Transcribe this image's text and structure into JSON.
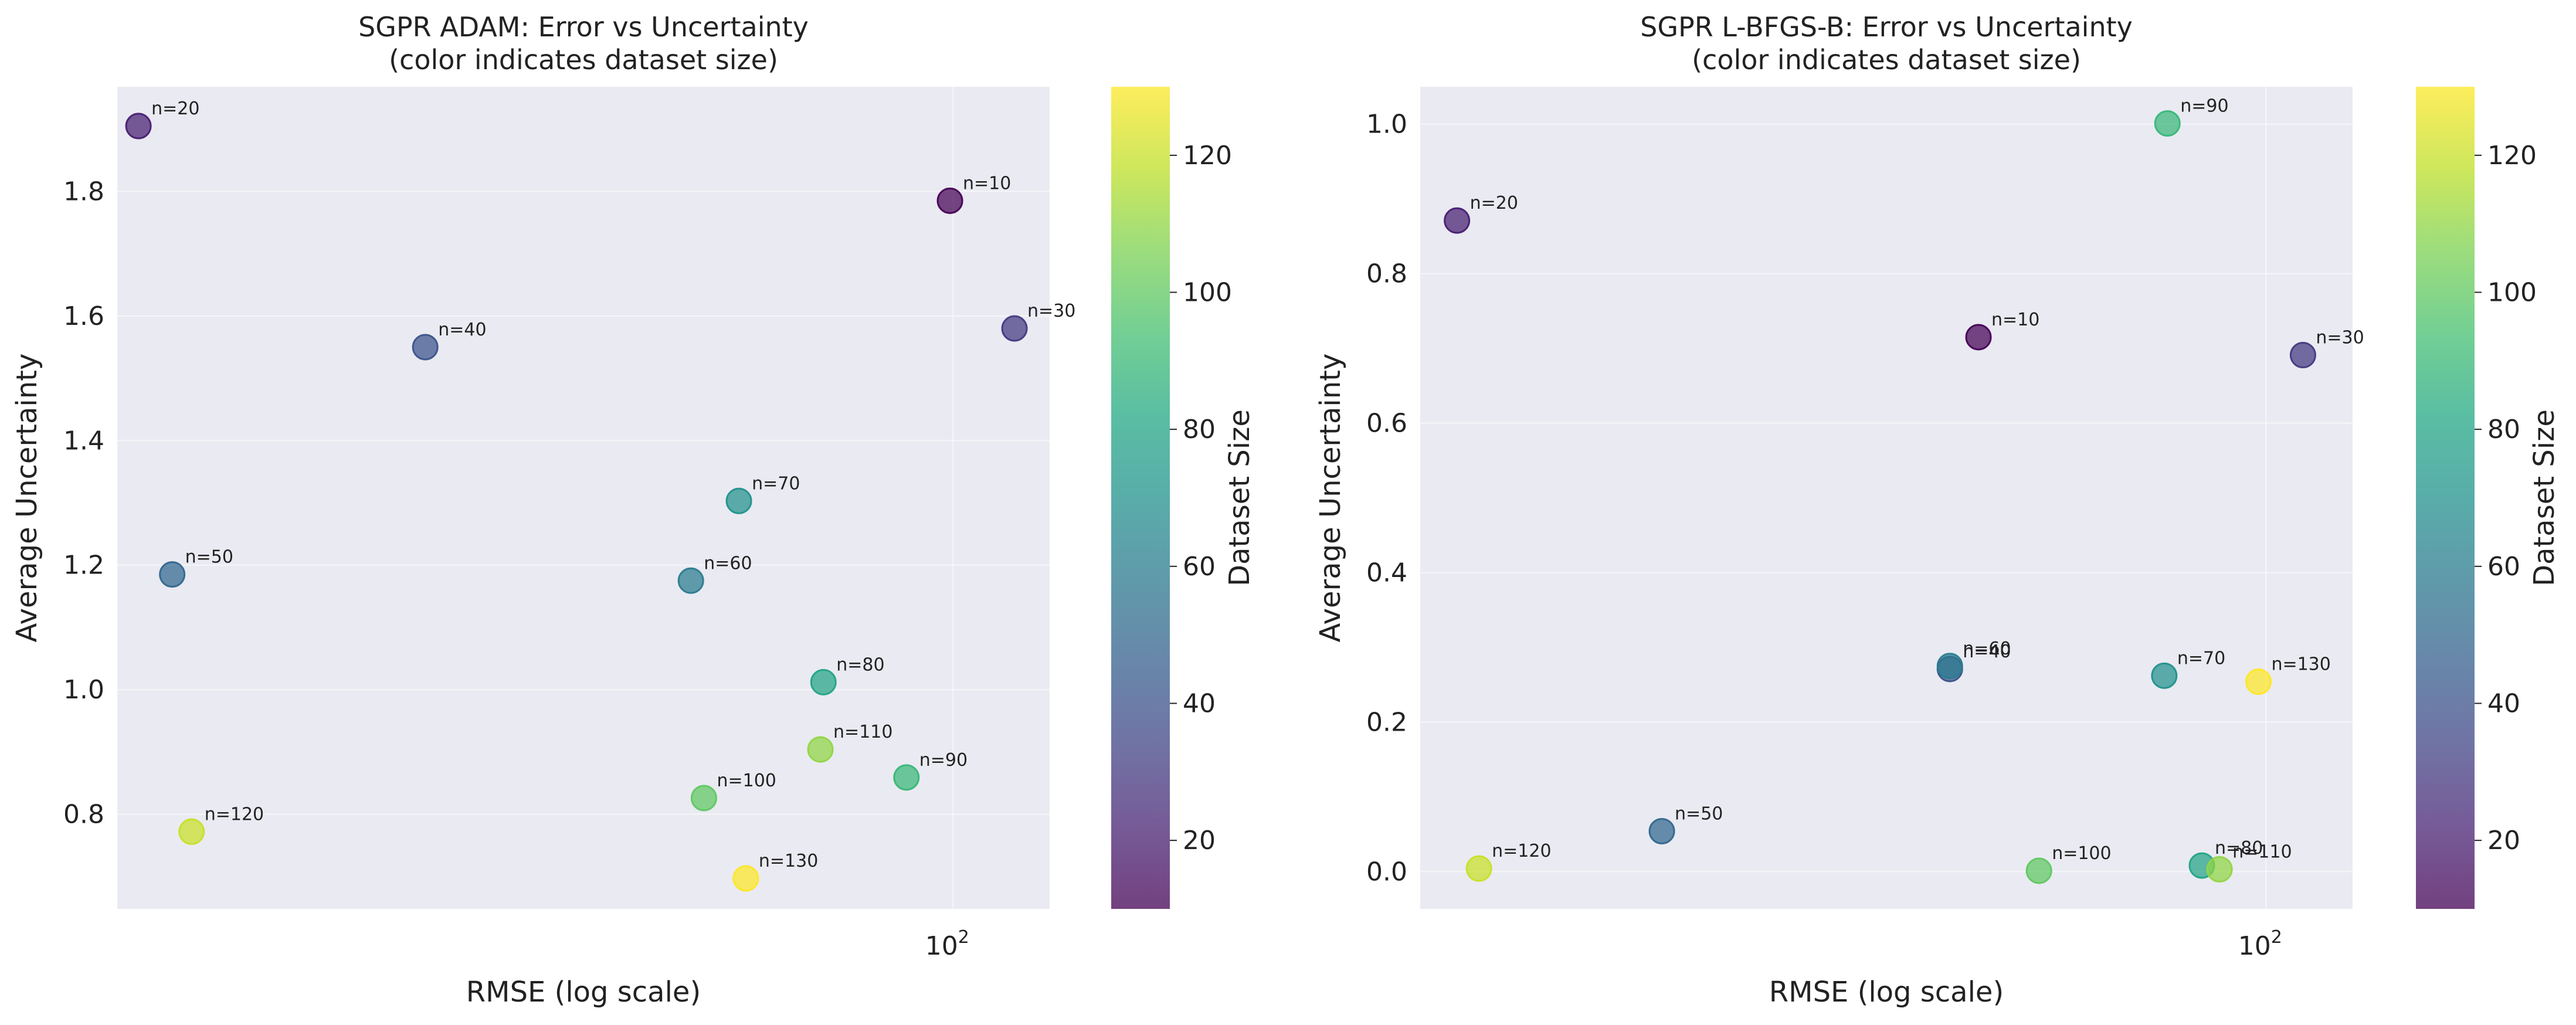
{
  "chart_data": [
    {
      "type": "scatter",
      "title": [
        "SGPR ADAM: Error vs Uncertainty",
        "(color indicates dataset size)"
      ],
      "xlabel": "RMSE (log scale)",
      "ylabel": "Average Uncertainty",
      "xscale": "log",
      "xlim": [
        25.7,
        117
      ],
      "ylim": [
        0.648,
        1.968
      ],
      "xticks": [
        {
          "value": 100,
          "base": "10",
          "exp": "2"
        }
      ],
      "yticks": [
        0.8,
        1.0,
        1.2,
        1.4,
        1.6,
        1.8
      ],
      "ytick_labels": [
        "0.8",
        "1.0",
        "1.2",
        "1.4",
        "1.6",
        "1.8"
      ],
      "grid": true,
      "colorbar": {
        "label": "Dataset Size",
        "range": [
          10,
          130
        ],
        "colormap": "viridis",
        "ticks": [
          20,
          40,
          60,
          80,
          100,
          120
        ],
        "tick_labels": [
          "20",
          "40",
          "60",
          "80",
          "100",
          "120"
        ]
      },
      "points": [
        {
          "label": "n=10",
          "n": 10,
          "x": 99.5,
          "y": 1.785
        },
        {
          "label": "n=20",
          "n": 20,
          "x": 26.6,
          "y": 1.905
        },
        {
          "label": "n=30",
          "n": 30,
          "x": 110.5,
          "y": 1.58
        },
        {
          "label": "n=40",
          "n": 40,
          "x": 42.4,
          "y": 1.55
        },
        {
          "label": "n=50",
          "n": 50,
          "x": 28.1,
          "y": 1.185
        },
        {
          "label": "n=60",
          "n": 60,
          "x": 65.3,
          "y": 1.175
        },
        {
          "label": "n=70",
          "n": 70,
          "x": 70.6,
          "y": 1.303
        },
        {
          "label": "n=80",
          "n": 80,
          "x": 81.0,
          "y": 1.012
        },
        {
          "label": "n=90",
          "n": 90,
          "x": 92.7,
          "y": 0.859
        },
        {
          "label": "n=100",
          "n": 100,
          "x": 66.7,
          "y": 0.826
        },
        {
          "label": "n=110",
          "n": 110,
          "x": 80.6,
          "y": 0.904
        },
        {
          "label": "n=120",
          "n": 120,
          "x": 29.0,
          "y": 0.772
        },
        {
          "label": "n=130",
          "n": 130,
          "x": 71.4,
          "y": 0.697
        }
      ]
    },
    {
      "type": "scatter",
      "title": [
        "SGPR L-BFGS-B: Error vs Uncertainty",
        "(color indicates dataset size)"
      ],
      "xlabel": "RMSE (log scale)",
      "ylabel": "Average Uncertainty",
      "xscale": "log",
      "xlim": [
        28.8,
        113.6
      ],
      "ylim": [
        -0.05,
        1.05
      ],
      "xticks": [
        {
          "value": 100,
          "base": "10",
          "exp": "2"
        }
      ],
      "yticks": [
        0.0,
        0.2,
        0.4,
        0.6,
        0.8,
        1.0
      ],
      "ytick_labels": [
        "0.0",
        "0.2",
        "0.4",
        "0.6",
        "0.8",
        "1.0"
      ],
      "grid": true,
      "colorbar": {
        "label": "Dataset Size",
        "range": [
          10,
          130
        ],
        "colormap": "viridis",
        "ticks": [
          20,
          40,
          60,
          80,
          100,
          120
        ],
        "tick_labels": [
          "20",
          "40",
          "60",
          "80",
          "100",
          "120"
        ]
      },
      "points": [
        {
          "label": "n=10",
          "n": 10,
          "x": 65.5,
          "y": 0.715
        },
        {
          "label": "n=20",
          "n": 20,
          "x": 30.4,
          "y": 0.871
        },
        {
          "label": "n=30",
          "n": 30,
          "x": 105.6,
          "y": 0.691
        },
        {
          "label": "n=40",
          "n": 40,
          "x": 62.8,
          "y": 0.271
        },
        {
          "label": "n=50",
          "n": 50,
          "x": 41.1,
          "y": 0.054
        },
        {
          "label": "n=60",
          "n": 60,
          "x": 62.8,
          "y": 0.275
        },
        {
          "label": "n=70",
          "n": 70,
          "x": 86.1,
          "y": 0.262
        },
        {
          "label": "n=80",
          "n": 80,
          "x": 91.0,
          "y": 0.008
        },
        {
          "label": "n=90",
          "n": 90,
          "x": 86.5,
          "y": 1.001
        },
        {
          "label": "n=100",
          "n": 100,
          "x": 71.6,
          "y": 0.001
        },
        {
          "label": "n=110",
          "n": 110,
          "x": 93.4,
          "y": 0.003
        },
        {
          "label": "n=120",
          "n": 120,
          "x": 31.4,
          "y": 0.004
        },
        {
          "label": "n=130",
          "n": 130,
          "x": 98.9,
          "y": 0.254
        }
      ]
    }
  ]
}
